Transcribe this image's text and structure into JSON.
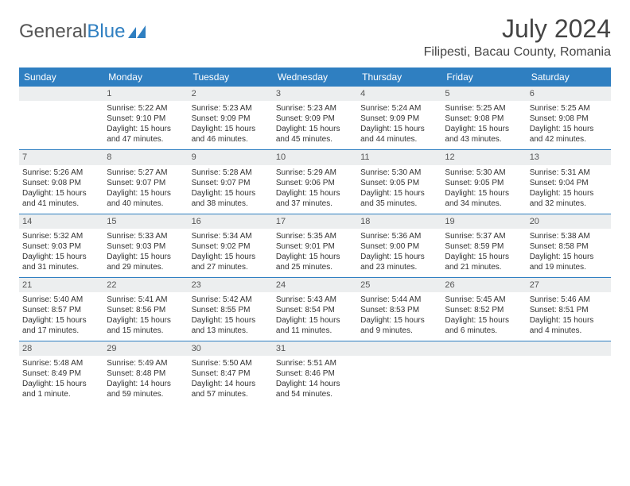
{
  "logo": {
    "text1": "General",
    "text2": "Blue"
  },
  "title": "July 2024",
  "location": "Filipesti, Bacau County, Romania",
  "colors": {
    "accent": "#2f7fc1",
    "daybg": "#eceeef",
    "text": "#333333"
  },
  "dayNames": [
    "Sunday",
    "Monday",
    "Tuesday",
    "Wednesday",
    "Thursday",
    "Friday",
    "Saturday"
  ],
  "weeks": [
    [
      null,
      {
        "n": "1",
        "sr": "5:22 AM",
        "ss": "9:10 PM",
        "dl": "15 hours and 47 minutes."
      },
      {
        "n": "2",
        "sr": "5:23 AM",
        "ss": "9:09 PM",
        "dl": "15 hours and 46 minutes."
      },
      {
        "n": "3",
        "sr": "5:23 AM",
        "ss": "9:09 PM",
        "dl": "15 hours and 45 minutes."
      },
      {
        "n": "4",
        "sr": "5:24 AM",
        "ss": "9:09 PM",
        "dl": "15 hours and 44 minutes."
      },
      {
        "n": "5",
        "sr": "5:25 AM",
        "ss": "9:08 PM",
        "dl": "15 hours and 43 minutes."
      },
      {
        "n": "6",
        "sr": "5:25 AM",
        "ss": "9:08 PM",
        "dl": "15 hours and 42 minutes."
      }
    ],
    [
      {
        "n": "7",
        "sr": "5:26 AM",
        "ss": "9:08 PM",
        "dl": "15 hours and 41 minutes."
      },
      {
        "n": "8",
        "sr": "5:27 AM",
        "ss": "9:07 PM",
        "dl": "15 hours and 40 minutes."
      },
      {
        "n": "9",
        "sr": "5:28 AM",
        "ss": "9:07 PM",
        "dl": "15 hours and 38 minutes."
      },
      {
        "n": "10",
        "sr": "5:29 AM",
        "ss": "9:06 PM",
        "dl": "15 hours and 37 minutes."
      },
      {
        "n": "11",
        "sr": "5:30 AM",
        "ss": "9:05 PM",
        "dl": "15 hours and 35 minutes."
      },
      {
        "n": "12",
        "sr": "5:30 AM",
        "ss": "9:05 PM",
        "dl": "15 hours and 34 minutes."
      },
      {
        "n": "13",
        "sr": "5:31 AM",
        "ss": "9:04 PM",
        "dl": "15 hours and 32 minutes."
      }
    ],
    [
      {
        "n": "14",
        "sr": "5:32 AM",
        "ss": "9:03 PM",
        "dl": "15 hours and 31 minutes."
      },
      {
        "n": "15",
        "sr": "5:33 AM",
        "ss": "9:03 PM",
        "dl": "15 hours and 29 minutes."
      },
      {
        "n": "16",
        "sr": "5:34 AM",
        "ss": "9:02 PM",
        "dl": "15 hours and 27 minutes."
      },
      {
        "n": "17",
        "sr": "5:35 AM",
        "ss": "9:01 PM",
        "dl": "15 hours and 25 minutes."
      },
      {
        "n": "18",
        "sr": "5:36 AM",
        "ss": "9:00 PM",
        "dl": "15 hours and 23 minutes."
      },
      {
        "n": "19",
        "sr": "5:37 AM",
        "ss": "8:59 PM",
        "dl": "15 hours and 21 minutes."
      },
      {
        "n": "20",
        "sr": "5:38 AM",
        "ss": "8:58 PM",
        "dl": "15 hours and 19 minutes."
      }
    ],
    [
      {
        "n": "21",
        "sr": "5:40 AM",
        "ss": "8:57 PM",
        "dl": "15 hours and 17 minutes."
      },
      {
        "n": "22",
        "sr": "5:41 AM",
        "ss": "8:56 PM",
        "dl": "15 hours and 15 minutes."
      },
      {
        "n": "23",
        "sr": "5:42 AM",
        "ss": "8:55 PM",
        "dl": "15 hours and 13 minutes."
      },
      {
        "n": "24",
        "sr": "5:43 AM",
        "ss": "8:54 PM",
        "dl": "15 hours and 11 minutes."
      },
      {
        "n": "25",
        "sr": "5:44 AM",
        "ss": "8:53 PM",
        "dl": "15 hours and 9 minutes."
      },
      {
        "n": "26",
        "sr": "5:45 AM",
        "ss": "8:52 PM",
        "dl": "15 hours and 6 minutes."
      },
      {
        "n": "27",
        "sr": "5:46 AM",
        "ss": "8:51 PM",
        "dl": "15 hours and 4 minutes."
      }
    ],
    [
      {
        "n": "28",
        "sr": "5:48 AM",
        "ss": "8:49 PM",
        "dl": "15 hours and 1 minute."
      },
      {
        "n": "29",
        "sr": "5:49 AM",
        "ss": "8:48 PM",
        "dl": "14 hours and 59 minutes."
      },
      {
        "n": "30",
        "sr": "5:50 AM",
        "ss": "8:47 PM",
        "dl": "14 hours and 57 minutes."
      },
      {
        "n": "31",
        "sr": "5:51 AM",
        "ss": "8:46 PM",
        "dl": "14 hours and 54 minutes."
      },
      null,
      null,
      null
    ]
  ],
  "labels": {
    "sunrise": "Sunrise: ",
    "sunset": "Sunset: ",
    "daylight": "Daylight: "
  }
}
